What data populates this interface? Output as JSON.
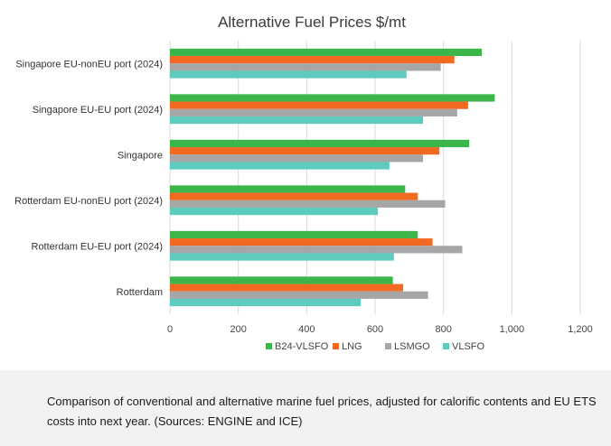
{
  "caption": "Comparison of conventional and alternative marine fuel prices, adjusted for calorific contents and EU ETS costs into next year. (Sources: ENGINE and ICE)",
  "chart_data": {
    "type": "bar",
    "orientation": "horizontal",
    "title": "Alternative Fuel Prices $/mt",
    "xlabel": "",
    "ylabel": "",
    "xlim": [
      0,
      1200
    ],
    "x_ticks": [
      "0",
      "200",
      "400",
      "600",
      "800",
      "1,000",
      "1,200"
    ],
    "x_tick_values": [
      0,
      200,
      400,
      600,
      800,
      1000,
      1200
    ],
    "grid": "vertical",
    "legend_position": "bottom",
    "categories": [
      "Singapore EU-nonEU port (2024)",
      "Singapore EU-EU port (2024)",
      "Singapore",
      "Rotterdam EU-nonEU port (2024)",
      "Rotterdam EU-EU port (2024)",
      "Rotterdam"
    ],
    "series": [
      {
        "name": "B24-VLSFO",
        "color": "#3cb54a",
        "values": [
          912,
          950,
          875,
          688,
          725,
          652
        ]
      },
      {
        "name": "LNG",
        "color": "#f26a21",
        "values": [
          832,
          872,
          788,
          725,
          768,
          682
        ]
      },
      {
        "name": "LSMGO",
        "color": "#a6a6a6",
        "values": [
          792,
          840,
          740,
          805,
          855,
          755
        ]
      },
      {
        "name": "VLSFO",
        "color": "#5ecbbf",
        "values": [
          692,
          740,
          642,
          608,
          655,
          558
        ]
      }
    ]
  }
}
